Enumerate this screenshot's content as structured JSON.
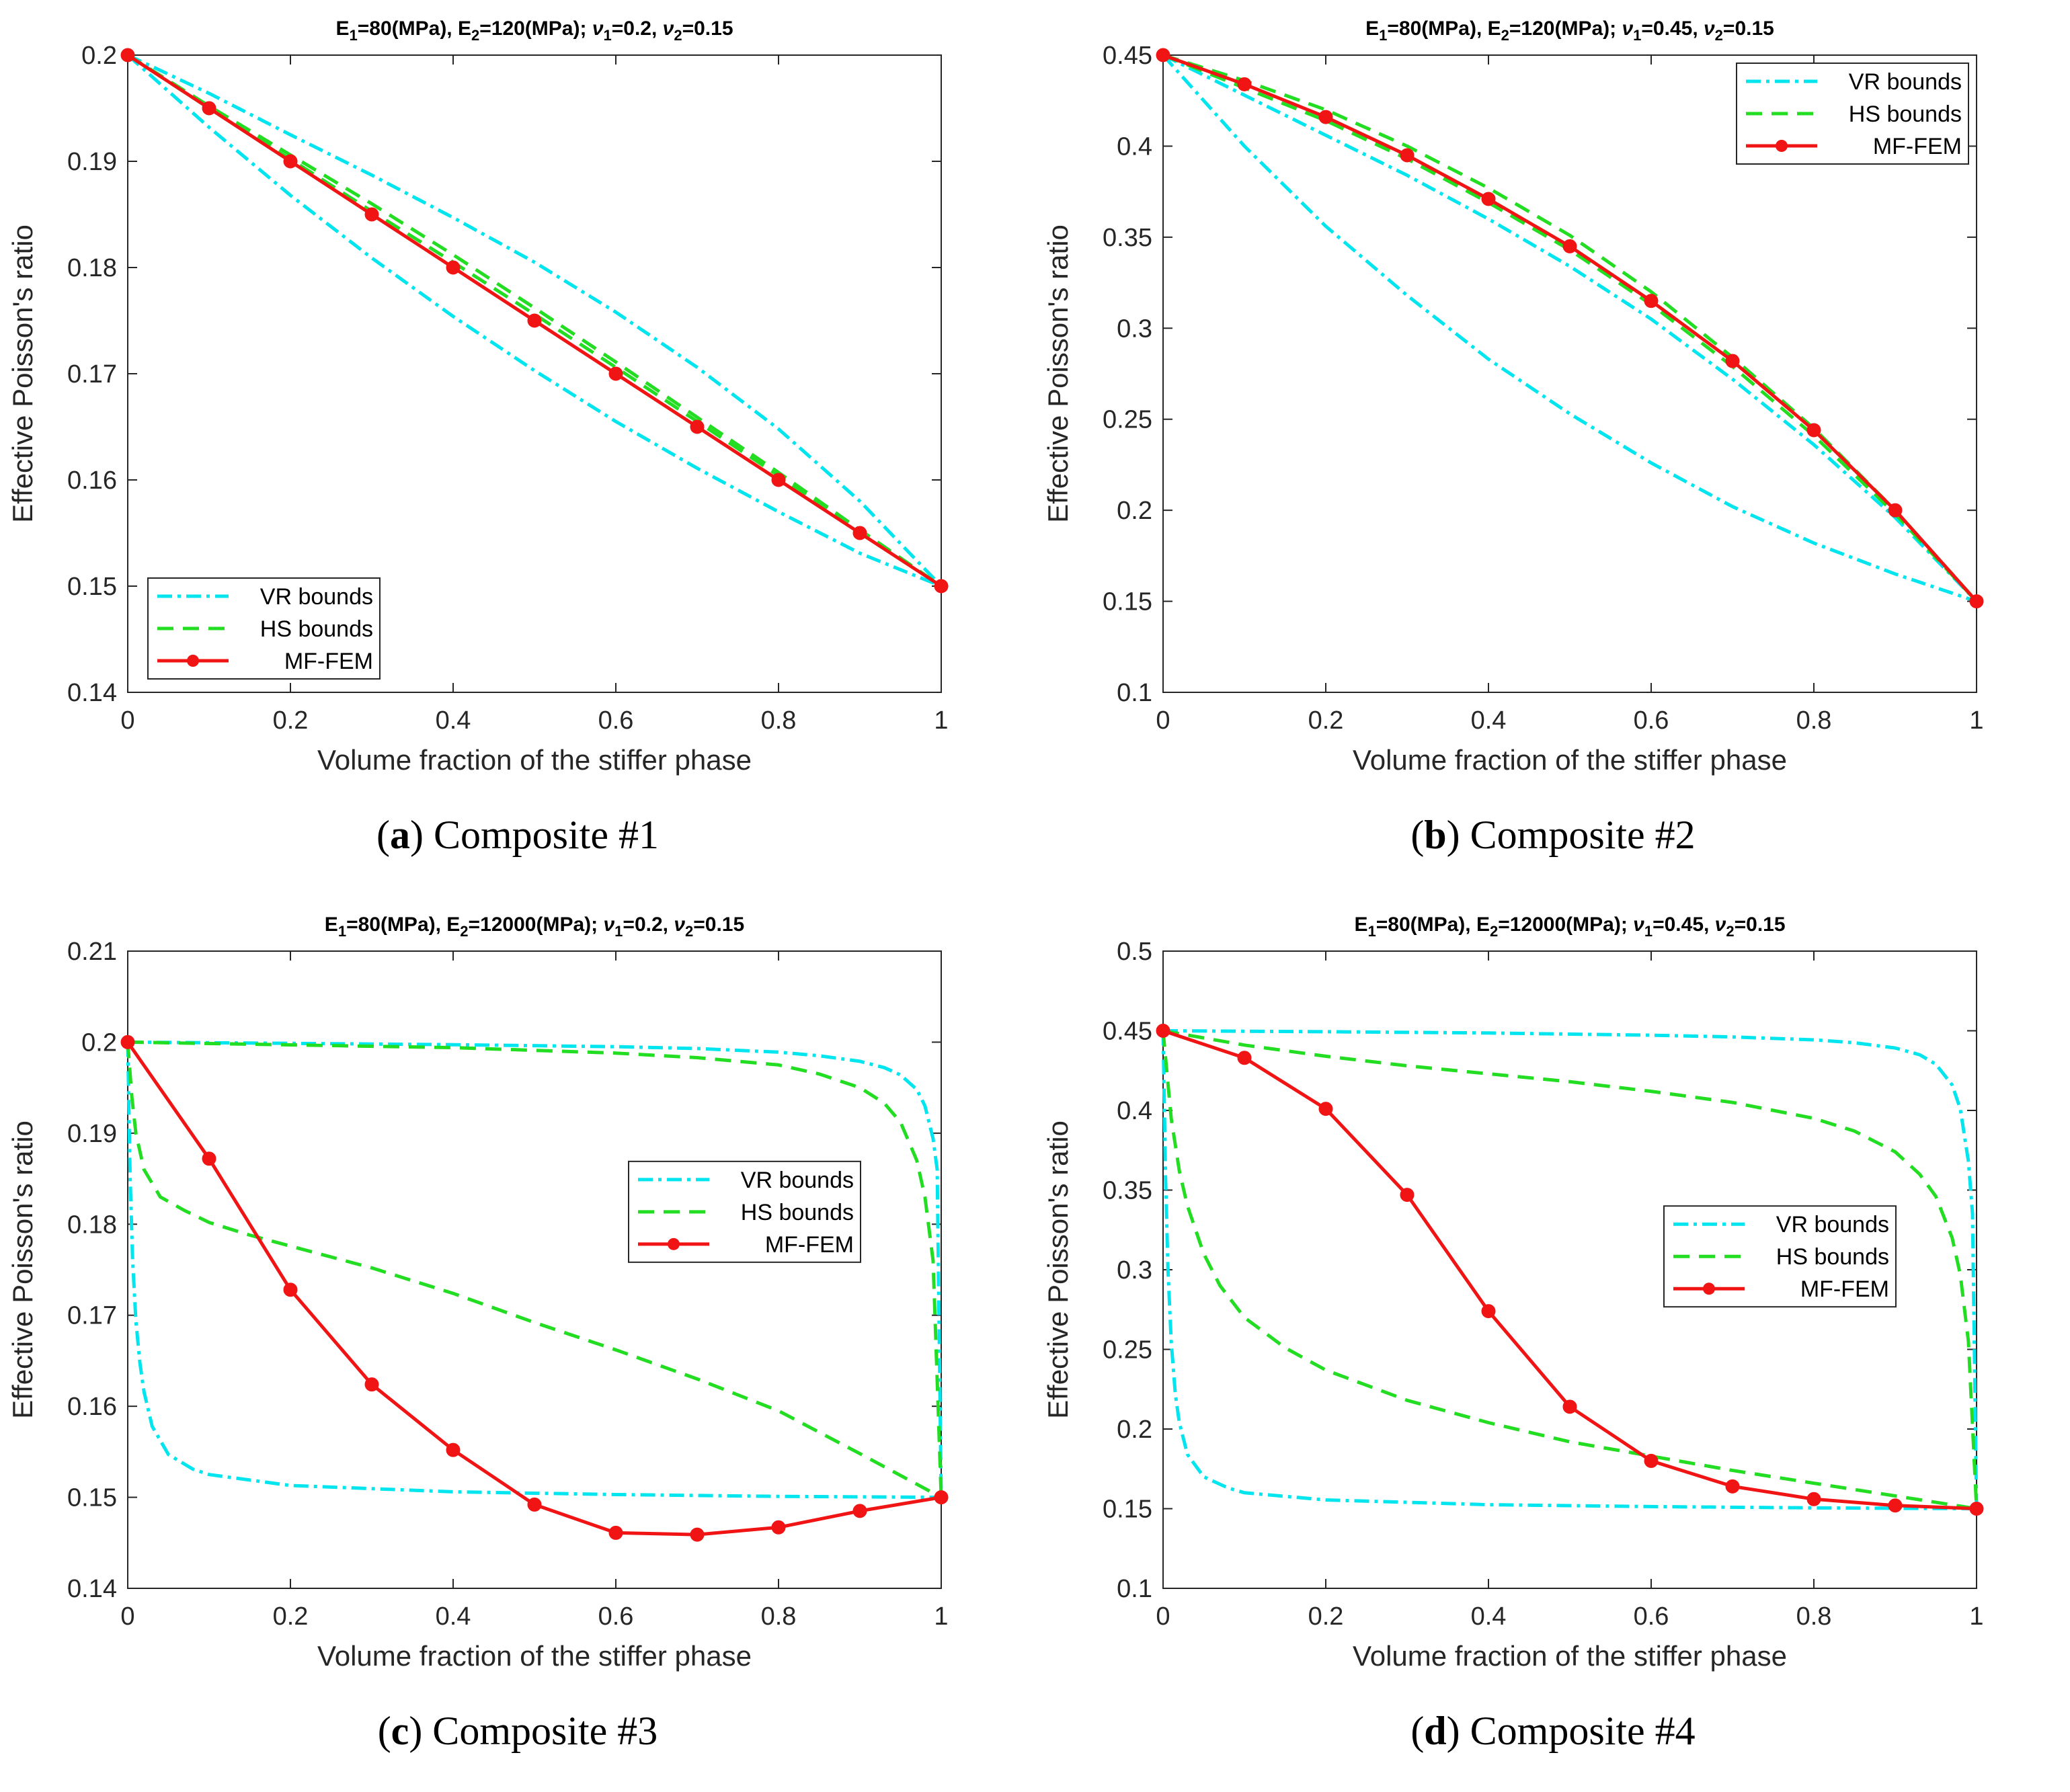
{
  "colors": {
    "vr": "#00E5EE",
    "hs": "#22DD22",
    "fem": "#F01414",
    "axis": "#262626"
  },
  "legend_labels": {
    "vr": "VR bounds",
    "hs": "HS bounds",
    "fem": "MF-FEM"
  },
  "panels": [
    {
      "id": "a",
      "caption": {
        "letter": "a",
        "text": "Composite #1"
      },
      "chart_data": {
        "type": "line",
        "title": {
          "E1": "80(MPa)",
          "E2": "120(MPa)",
          "nu1": "0.2",
          "nu2": "0.15"
        },
        "xlabel": "Volume fraction of the stiffer phase",
        "ylabel": "Effective Poisson's ratio",
        "xlim": [
          0,
          1
        ],
        "ylim": [
          0.14,
          0.2
        ],
        "xticks": [
          "0",
          "0.2",
          "0.4",
          "0.6",
          "0.8",
          "1"
        ],
        "yticks": [
          "0.14",
          "0.15",
          "0.16",
          "0.17",
          "0.18",
          "0.19",
          "0.2"
        ],
        "legend_position": "bottom-left",
        "x": [
          0,
          0.1,
          0.2,
          0.3,
          0.4,
          0.5,
          0.6,
          0.7,
          0.8,
          0.9,
          1
        ],
        "series": [
          {
            "name": "VR upper",
            "kind": "vr",
            "values": [
              0.2,
              0.1964,
              0.1925,
              0.1887,
              0.1847,
              0.1805,
              0.1758,
              0.1706,
              0.1648,
              0.158,
              0.15
            ]
          },
          {
            "name": "VR lower",
            "kind": "vr",
            "values": [
              0.2,
              0.1932,
              0.1868,
              0.1809,
              0.1754,
              0.1703,
              0.1655,
              0.1611,
              0.157,
              0.1531,
              0.15
            ]
          },
          {
            "name": "HS upper",
            "kind": "hs",
            "values": [
              0.2,
              0.1952,
              0.1906,
              0.186,
              0.1812,
              0.1762,
              0.1711,
              0.1659,
              0.1607,
              0.1553,
              0.15
            ]
          },
          {
            "name": "HS lower",
            "kind": "hs",
            "values": [
              0.2,
              0.195,
              0.1902,
              0.1853,
              0.1805,
              0.1756,
              0.1706,
              0.1655,
              0.1604,
              0.1552,
              0.15
            ]
          },
          {
            "name": "MF-FEM",
            "kind": "fem",
            "markers": true,
            "values": [
              0.2,
              0.195,
              0.19,
              0.185,
              0.18,
              0.175,
              0.17,
              0.165,
              0.16,
              0.155,
              0.15
            ]
          }
        ]
      }
    },
    {
      "id": "b",
      "caption": {
        "letter": "b",
        "text": "Composite #2"
      },
      "chart_data": {
        "type": "line",
        "title": {
          "E1": "80(MPa)",
          "E2": "120(MPa)",
          "nu1": "0.45",
          "nu2": "0.15"
        },
        "xlabel": "Volume fraction of the stiffer phase",
        "ylabel": "Effective Poisson's ratio",
        "xlim": [
          0,
          1
        ],
        "ylim": [
          0.1,
          0.45
        ],
        "xticks": [
          "0",
          "0.2",
          "0.4",
          "0.6",
          "0.8",
          "1"
        ],
        "yticks": [
          "0.1",
          "0.15",
          "0.2",
          "0.25",
          "0.3",
          "0.35",
          "0.4",
          "0.45"
        ],
        "legend_position": "top-right",
        "x": [
          0,
          0.1,
          0.2,
          0.3,
          0.4,
          0.5,
          0.6,
          0.7,
          0.8,
          0.9,
          1
        ],
        "series": [
          {
            "name": "VR upper",
            "kind": "vr",
            "values": [
              0.45,
              0.428,
              0.406,
              0.384,
              0.36,
              0.334,
              0.305,
              0.272,
              0.236,
              0.196,
              0.15
            ]
          },
          {
            "name": "VR lower",
            "kind": "vr",
            "values": [
              0.45,
              0.4,
              0.356,
              0.318,
              0.283,
              0.253,
              0.226,
              0.202,
              0.182,
              0.165,
              0.15
            ]
          },
          {
            "name": "HS upper",
            "kind": "hs",
            "values": [
              0.45,
              0.436,
              0.42,
              0.4,
              0.377,
              0.351,
              0.32,
              0.284,
              0.245,
              0.2,
              0.15
            ]
          },
          {
            "name": "HS lower",
            "kind": "hs",
            "values": [
              0.45,
              0.432,
              0.414,
              0.393,
              0.369,
              0.343,
              0.313,
              0.279,
              0.241,
              0.198,
              0.15
            ]
          },
          {
            "name": "MF-FEM",
            "kind": "fem",
            "markers": true,
            "values": [
              0.45,
              0.434,
              0.416,
              0.395,
              0.371,
              0.345,
              0.315,
              0.282,
              0.244,
              0.2,
              0.15
            ]
          }
        ]
      }
    },
    {
      "id": "c",
      "caption": {
        "letter": "c",
        "text": "Composite #3"
      },
      "chart_data": {
        "type": "line",
        "title": {
          "E1": "80(MPa)",
          "E2": "12000(MPa)",
          "nu1": "0.2",
          "nu2": "0.15"
        },
        "xlabel": "Volume fraction of the stiffer phase",
        "ylabel": "Effective Poisson's ratio",
        "xlim": [
          0,
          1
        ],
        "ylim": [
          0.14,
          0.21
        ],
        "xticks": [
          "0",
          "0.2",
          "0.4",
          "0.6",
          "0.8",
          "1"
        ],
        "yticks": [
          "0.14",
          "0.15",
          "0.16",
          "0.17",
          "0.18",
          "0.19",
          "0.2",
          "0.21"
        ],
        "legend_position": "center-right",
        "x": [
          0,
          0.1,
          0.2,
          0.3,
          0.4,
          0.5,
          0.6,
          0.7,
          0.8,
          0.9,
          1
        ],
        "series": [
          {
            "name": "VR upper",
            "kind": "vr",
            "x": [
              0,
              0.2,
              0.4,
              0.6,
              0.7,
              0.8,
              0.85,
              0.9,
              0.93,
              0.95,
              0.97,
              0.98,
              0.99,
              0.995,
              1
            ],
            "values": [
              0.2,
              0.19987,
              0.19972,
              0.1995,
              0.1993,
              0.1989,
              0.1985,
              0.1979,
              0.1972,
              0.1964,
              0.1948,
              0.193,
              0.1894,
              0.186,
              0.15
            ]
          },
          {
            "name": "VR lower",
            "kind": "vr",
            "x": [
              0,
              0.003,
              0.006,
              0.01,
              0.015,
              0.02,
              0.03,
              0.05,
              0.08,
              0.1,
              0.2,
              0.4,
              0.6,
              0.8,
              1
            ],
            "values": [
              0.2,
              0.185,
              0.176,
              0.1694,
              0.1647,
              0.1616,
              0.1578,
              0.1547,
              0.1531,
              0.1525,
              0.1513,
              0.1506,
              0.1503,
              0.1501,
              0.15
            ]
          },
          {
            "name": "HS upper",
            "kind": "hs",
            "x": [
              0,
              0.2,
              0.4,
              0.6,
              0.7,
              0.8,
              0.85,
              0.9,
              0.93,
              0.95,
              0.97,
              0.98,
              0.99,
              1
            ],
            "values": [
              0.2,
              0.1997,
              0.1994,
              0.1988,
              0.1983,
              0.1975,
              0.1965,
              0.195,
              0.1933,
              0.1912,
              0.187,
              0.183,
              0.176,
              0.15
            ]
          },
          {
            "name": "HS lower",
            "kind": "hs",
            "x": [
              0,
              0.005,
              0.01,
              0.02,
              0.04,
              0.07,
              0.1,
              0.15,
              0.2,
              0.3,
              0.4,
              0.5,
              0.6,
              0.7,
              0.8,
              0.9,
              1
            ],
            "values": [
              0.2,
              0.194,
              0.19,
              0.186,
              0.183,
              0.1815,
              0.1802,
              0.1788,
              0.1776,
              0.1752,
              0.1724,
              0.1692,
              0.1662,
              0.163,
              0.1595,
              0.1548,
              0.15
            ]
          },
          {
            "name": "MF-FEM",
            "kind": "fem",
            "markers": true,
            "values": [
              0.2,
              0.1872,
              0.1728,
              0.1624,
              0.1552,
              0.1492,
              0.1461,
              0.1459,
              0.1467,
              0.1485,
              0.15
            ]
          }
        ]
      }
    },
    {
      "id": "d",
      "caption": {
        "letter": "d",
        "text": "Composite #4"
      },
      "chart_data": {
        "type": "line",
        "title": {
          "E1": "80(MPa)",
          "E2": "12000(MPa)",
          "nu1": "0.45",
          "nu2": "0.15"
        },
        "xlabel": "Volume fraction of the stiffer phase",
        "ylabel": "Effective Poisson's ratio",
        "xlim": [
          0,
          1
        ],
        "ylim": [
          0.1,
          0.5
        ],
        "xticks": [
          "0",
          "0.2",
          "0.4",
          "0.6",
          "0.8",
          "1"
        ],
        "yticks": [
          "0.1",
          "0.15",
          "0.2",
          "0.25",
          "0.3",
          "0.35",
          "0.4",
          "0.45",
          "0.5"
        ],
        "legend_position": "center-right",
        "x": [
          0,
          0.1,
          0.2,
          0.3,
          0.4,
          0.5,
          0.6,
          0.7,
          0.8,
          0.9,
          1
        ],
        "series": [
          {
            "name": "VR upper",
            "kind": "vr",
            "x": [
              0,
              0.2,
              0.4,
              0.6,
              0.7,
              0.8,
              0.85,
              0.9,
              0.93,
              0.95,
              0.97,
              0.98,
              0.99,
              0.995,
              1
            ],
            "values": [
              0.45,
              0.4494,
              0.4486,
              0.4472,
              0.4461,
              0.4443,
              0.4425,
              0.4392,
              0.435,
              0.429,
              0.416,
              0.401,
              0.368,
              0.335,
              0.15
            ]
          },
          {
            "name": "VR lower",
            "kind": "vr",
            "x": [
              0,
              0.003,
              0.006,
              0.01,
              0.015,
              0.02,
              0.03,
              0.05,
              0.08,
              0.1,
              0.2,
              0.4,
              0.6,
              0.8,
              1
            ],
            "values": [
              0.45,
              0.36,
              0.3,
              0.255,
              0.222,
              0.204,
              0.184,
              0.17,
              0.163,
              0.16,
              0.1555,
              0.1525,
              0.1513,
              0.1505,
              0.15
            ]
          },
          {
            "name": "HS upper",
            "kind": "hs",
            "x": [
              0,
              0.1,
              0.2,
              0.3,
              0.4,
              0.5,
              0.6,
              0.7,
              0.8,
              0.85,
              0.9,
              0.93,
              0.95,
              0.97,
              0.98,
              0.99,
              1
            ],
            "values": [
              0.45,
              0.441,
              0.434,
              0.428,
              0.423,
              0.418,
              0.412,
              0.405,
              0.395,
              0.387,
              0.374,
              0.36,
              0.346,
              0.32,
              0.297,
              0.255,
              0.15
            ]
          },
          {
            "name": "HS lower",
            "kind": "hs",
            "x": [
              0,
              0.01,
              0.02,
              0.03,
              0.05,
              0.07,
              0.1,
              0.15,
              0.2,
              0.3,
              0.4,
              0.5,
              0.6,
              0.7,
              0.8,
              0.9,
              1
            ],
            "values": [
              0.45,
              0.395,
              0.362,
              0.34,
              0.31,
              0.29,
              0.27,
              0.251,
              0.237,
              0.218,
              0.204,
              0.192,
              0.183,
              0.174,
              0.166,
              0.158,
              0.15
            ]
          },
          {
            "name": "MF-FEM",
            "kind": "fem",
            "markers": true,
            "values": [
              0.45,
              0.433,
              0.401,
              0.347,
              0.274,
              0.214,
              0.18,
              0.164,
              0.156,
              0.152,
              0.15
            ]
          }
        ]
      }
    }
  ]
}
